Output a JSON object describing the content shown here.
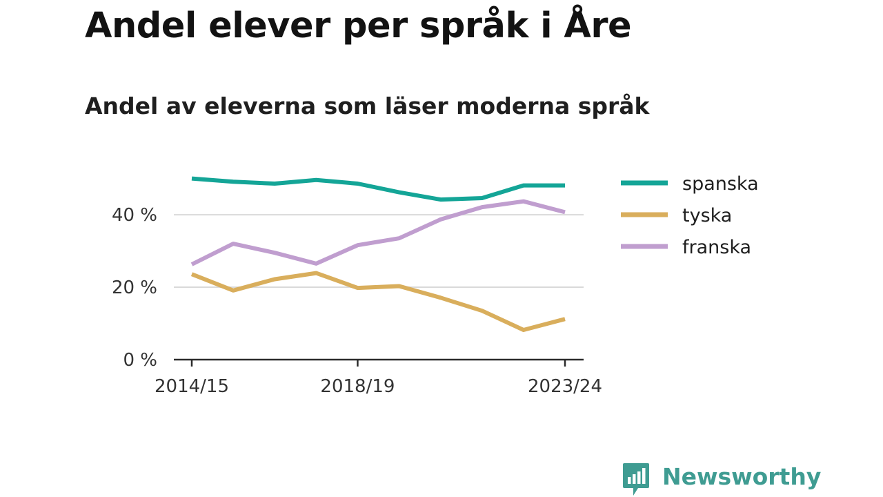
{
  "title": "Andel elever per språk i Åre",
  "subtitle": "Andel av eleverna som läser moderna språk",
  "brand": {
    "name": "Newsworthy",
    "color": "#3f9c92",
    "icon": "bar-chart-speech-bubble-icon"
  },
  "chart_data": {
    "type": "line",
    "x": [
      "2014/15",
      "2015/16",
      "2016/17",
      "2017/18",
      "2018/19",
      "2019/20",
      "2020/21",
      "2021/22",
      "2022/23",
      "2023/24"
    ],
    "x_tick_labels": [
      "2014/15",
      "2018/19",
      "2023/24"
    ],
    "y_tick_labels": [
      "0 %",
      "20 %",
      "40 %"
    ],
    "y_ticks": [
      0,
      20,
      40
    ],
    "ylim": [
      0,
      50.5
    ],
    "grid": true,
    "legend_position": "right",
    "series": [
      {
        "name": "spanska",
        "color": "#14a597",
        "values": [
          50.0,
          49.1,
          48.6,
          49.6,
          48.6,
          46.2,
          44.2,
          44.6,
          48.1,
          48.1
        ]
      },
      {
        "name": "tyska",
        "color": "#d9ae5c",
        "values": [
          23.6,
          19.1,
          22.2,
          23.9,
          19.8,
          20.3,
          17.1,
          13.5,
          8.2,
          11.2
        ]
      },
      {
        "name": "franska",
        "color": "#c09ecf",
        "values": [
          26.3,
          32.0,
          29.5,
          26.5,
          31.6,
          33.5,
          38.7,
          42.1,
          43.7,
          40.7
        ]
      }
    ]
  }
}
